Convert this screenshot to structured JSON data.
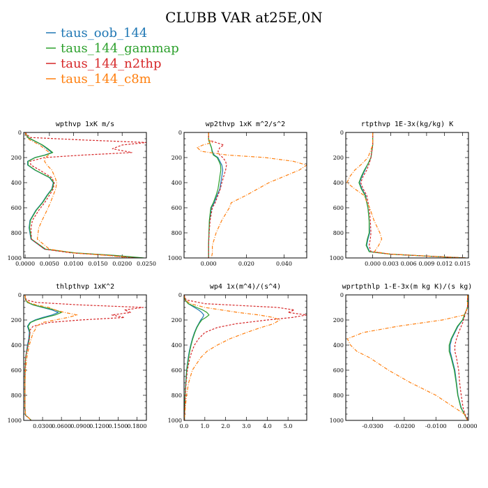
{
  "figure_title": "CLUBB VAR at25E,0N",
  "legend": [
    {
      "label": "taus_oob_144",
      "color": "#1f77b4"
    },
    {
      "label": "taus_144_gammap",
      "color": "#2ca02c"
    },
    {
      "label": "taus_144_n2thp",
      "color": "#d62728"
    },
    {
      "label": "taus_144_c8m",
      "color": "#ff7f0e"
    }
  ],
  "chart_data": [
    {
      "type": "line",
      "title": "wpthvp  1xK m/s",
      "xlim": [
        -0.0003,
        0.025
      ],
      "ylim": [
        1000,
        0
      ],
      "xticks": [
        0.0,
        0.005,
        0.01,
        0.015,
        0.02,
        0.025
      ],
      "xticklabels": [
        "0.0000",
        "0.0050",
        "0.0100",
        "0.0150",
        "0.0200",
        "0.0250"
      ],
      "yticks": [
        0,
        200,
        400,
        600,
        800,
        1000
      ],
      "y": [
        0,
        40,
        60,
        80,
        100,
        130,
        160,
        180,
        200,
        230,
        260,
        300,
        360,
        400,
        450,
        500,
        560,
        620,
        700,
        760,
        850,
        930,
        960,
        980,
        1000
      ],
      "series": [
        {
          "name": "taus_oob_144",
          "values": [
            0,
            0.0005,
            0.0015,
            0.0025,
            0.0035,
            0.0045,
            0.0055,
            0.004,
            0.002,
            0.0005,
            0.0005,
            0.002,
            0.005,
            0.0058,
            0.0055,
            0.0045,
            0.0035,
            0.0022,
            0.001,
            0.0008,
            0.0012,
            0.004,
            0.01,
            0.018,
            0.024
          ]
        },
        {
          "name": "taus_144_gammap",
          "values": [
            0,
            0.0006,
            0.0016,
            0.0026,
            0.0036,
            0.0047,
            0.0057,
            0.0042,
            0.0021,
            0.0006,
            0.0006,
            0.0021,
            0.0051,
            0.0059,
            0.0056,
            0.0046,
            0.0036,
            0.0023,
            0.0011,
            0.0009,
            0.0013,
            0.0042,
            0.0105,
            0.0185,
            0.0245
          ]
        },
        {
          "name": "taus_144_n2thp",
          "values": [
            0,
            0.001,
            0.012,
            0.025,
            0.02,
            0.018,
            0.022,
            0.012,
            0.004,
            0.001,
            0.0012,
            0.003,
            0.0055,
            0.006,
            0.0058,
            0.005,
            0.004,
            0.0028,
            0.0015,
            0.0012,
            0.0013,
            0.004,
            0.0095,
            0.0175,
            0.023
          ]
        },
        {
          "name": "taus_144_c8m",
          "values": [
            0,
            0.0004,
            0.001,
            0.002,
            0.003,
            0.004,
            0.005,
            0.0048,
            0.0042,
            0.004,
            0.0045,
            0.0055,
            0.0062,
            0.0065,
            0.0063,
            0.0058,
            0.0052,
            0.0045,
            0.0035,
            0.0028,
            0.0025,
            0.005,
            0.01,
            0.017,
            0.022
          ]
        }
      ]
    },
    {
      "type": "line",
      "title": "wp2thvp  1xK m^2/s^2",
      "xlim": [
        -0.013,
        0.052
      ],
      "ylim": [
        1000,
        0
      ],
      "xticks": [
        0.0,
        0.02,
        0.04
      ],
      "xticklabels": [
        "0.000",
        "0.020",
        "0.040"
      ],
      "yticks": [
        0,
        200,
        400,
        600,
        800,
        1000
      ],
      "y": [
        0,
        60,
        80,
        100,
        120,
        150,
        180,
        200,
        230,
        260,
        300,
        350,
        400,
        450,
        500,
        560,
        600,
        700,
        800,
        900,
        960,
        1000
      ],
      "series": [
        {
          "name": "taus_oob_144",
          "values": [
            0,
            0,
            0.0005,
            0.001,
            0.0015,
            0.002,
            0.003,
            0.005,
            0.006,
            0.007,
            0.0075,
            0.007,
            0.0065,
            0.006,
            0.0045,
            0.003,
            0.0015,
            0.0005,
            0.0002,
            0,
            0,
            0
          ]
        },
        {
          "name": "taus_144_gammap",
          "values": [
            0,
            0,
            0.0005,
            0.001,
            0.0015,
            0.0018,
            0.0025,
            0.0045,
            0.0055,
            0.0063,
            0.0065,
            0.006,
            0.0055,
            0.005,
            0.004,
            0.0025,
            0.0012,
            0.0004,
            0.0002,
            0,
            0,
            0
          ]
        },
        {
          "name": "taus_144_n2thp",
          "values": [
            0,
            0,
            0.004,
            0.008,
            0.006,
            0.005,
            0.006,
            0.0075,
            0.009,
            0.0095,
            0.009,
            0.008,
            0.007,
            0.0062,
            0.005,
            0.0035,
            0.002,
            0.0008,
            0.0003,
            0,
            0,
            0
          ]
        },
        {
          "name": "taus_144_c8m",
          "values": [
            0,
            0,
            0.002,
            -0.003,
            -0.006,
            -0.004,
            0.01,
            0.03,
            0.045,
            0.052,
            0.048,
            0.04,
            0.032,
            0.026,
            0.02,
            0.012,
            0.011,
            0.007,
            0.004,
            0.002,
            0.002,
            0.0015
          ]
        }
      ]
    },
    {
      "type": "line",
      "title": "rtpthvp  1E-3x(kg/kg) K",
      "xlim": [
        -0.0045,
        0.016
      ],
      "ylim": [
        1000,
        0
      ],
      "xticks": [
        0.0,
        0.003,
        0.006,
        0.009,
        0.012,
        0.015
      ],
      "xticklabels": [
        "0.000",
        "0.003",
        "0.006",
        "0.009",
        "0.012",
        "0.015"
      ],
      "yticks": [
        0,
        200,
        400,
        600,
        800,
        1000
      ],
      "y": [
        0,
        100,
        200,
        250,
        300,
        350,
        400,
        450,
        500,
        600,
        700,
        800,
        850,
        900,
        950,
        970,
        985,
        1000
      ],
      "series": [
        {
          "name": "taus_oob_144",
          "values": [
            0,
            0,
            -0.0003,
            -0.0008,
            -0.0013,
            -0.0018,
            -0.0022,
            -0.0018,
            -0.0012,
            -0.0008,
            -0.0006,
            -0.0005,
            -0.0008,
            -0.001,
            -0.0005,
            0.003,
            0.009,
            0.0155
          ]
        },
        {
          "name": "taus_144_gammap",
          "values": [
            0,
            0,
            -0.0003,
            -0.0008,
            -0.0014,
            -0.0019,
            -0.0023,
            -0.0019,
            -0.0013,
            -0.0008,
            -0.0006,
            -0.0006,
            -0.0009,
            -0.0011,
            -0.0006,
            0.003,
            0.009,
            0.0155
          ]
        },
        {
          "name": "taus_144_n2thp",
          "values": [
            0,
            0,
            -0.0003,
            -0.0006,
            -0.001,
            -0.0016,
            -0.002,
            -0.0016,
            -0.001,
            -0.0006,
            -0.0004,
            -0.0003,
            -0.0004,
            -0.0006,
            -0.0003,
            0.003,
            0.009,
            0.0155
          ]
        },
        {
          "name": "taus_144_c8m",
          "values": [
            0,
            0,
            -0.0008,
            -0.0018,
            -0.003,
            -0.0038,
            -0.0043,
            -0.003,
            -0.0015,
            -0.0005,
            0.0002,
            0.0012,
            0.0015,
            0.001,
            0.0003,
            0.003,
            0.009,
            0.0155
          ]
        }
      ]
    },
    {
      "type": "line",
      "title": "thlpthvp  1xK^2",
      "xlim": [
        0.0,
        0.195
      ],
      "ylim": [
        1000,
        0
      ],
      "xticks": [
        0.03,
        0.06,
        0.09,
        0.12,
        0.15,
        0.18
      ],
      "xticklabels": [
        "0.0300",
        "0.0600",
        "0.0900",
        "0.1200",
        "0.1500",
        "0.1800"
      ],
      "yticks": [
        0,
        200,
        400,
        600,
        800,
        1000
      ],
      "y": [
        0,
        40,
        60,
        80,
        100,
        120,
        140,
        160,
        180,
        200,
        220,
        250,
        280,
        300,
        350,
        400,
        500,
        600,
        700,
        800,
        900,
        960,
        980,
        1000
      ],
      "series": [
        {
          "name": "taus_oob_144",
          "values": [
            0.002,
            0.003,
            0.006,
            0.015,
            0.03,
            0.045,
            0.055,
            0.045,
            0.03,
            0.018,
            0.01,
            0.006,
            0.008,
            0.009,
            0.008,
            0.006,
            0.003,
            0.002,
            0.002,
            0.002,
            0.002,
            0.003,
            0.008,
            0.012
          ]
        },
        {
          "name": "taus_144_gammap",
          "values": [
            0.002,
            0.003,
            0.006,
            0.016,
            0.032,
            0.05,
            0.06,
            0.05,
            0.034,
            0.02,
            0.011,
            0.007,
            0.009,
            0.01,
            0.009,
            0.007,
            0.003,
            0.002,
            0.002,
            0.002,
            0.002,
            0.003,
            0.008,
            0.012
          ]
        },
        {
          "name": "taus_144_n2thp",
          "values": [
            0.002,
            0.004,
            0.02,
            0.09,
            0.19,
            0.16,
            0.17,
            0.14,
            0.16,
            0.09,
            0.04,
            0.015,
            0.01,
            0.01,
            0.009,
            0.007,
            0.003,
            0.002,
            0.002,
            0.002,
            0.002,
            0.003,
            0.008,
            0.012
          ]
        },
        {
          "name": "taus_144_c8m",
          "values": [
            0.002,
            0.003,
            0.008,
            0.02,
            0.04,
            0.05,
            0.065,
            0.085,
            0.07,
            0.05,
            0.03,
            0.02,
            0.018,
            0.015,
            0.012,
            0.009,
            0.005,
            0.003,
            0.002,
            0.002,
            0.002,
            0.003,
            0.008,
            0.012
          ]
        }
      ]
    },
    {
      "type": "line",
      "title": "wp4  1x(m^4)/(s^4)",
      "xlim": [
        0.0,
        5.9
      ],
      "ylim": [
        1000,
        0
      ],
      "xticks": [
        0.0,
        1.0,
        2.0,
        3.0,
        4.0,
        5.0
      ],
      "xticklabels": [
        "0.0",
        "1.0",
        "2.0",
        "3.0",
        "4.0",
        "5.0"
      ],
      "yticks": [
        0,
        200,
        400,
        600,
        800,
        1000
      ],
      "y": [
        0,
        40,
        70,
        100,
        120,
        140,
        160,
        180,
        200,
        230,
        260,
        300,
        350,
        400,
        450,
        500,
        600,
        700,
        800,
        900,
        960,
        1000
      ],
      "series": [
        {
          "name": "taus_oob_144",
          "values": [
            0,
            0.05,
            0.2,
            0.5,
            0.7,
            0.85,
            0.95,
            0.9,
            0.8,
            0.7,
            0.6,
            0.5,
            0.4,
            0.32,
            0.25,
            0.2,
            0.12,
            0.08,
            0.05,
            0.03,
            0.02,
            0.02
          ]
        },
        {
          "name": "taus_144_gammap",
          "values": [
            0,
            0.05,
            0.2,
            0.6,
            0.9,
            1.1,
            1.2,
            1.05,
            0.85,
            0.72,
            0.62,
            0.52,
            0.42,
            0.34,
            0.27,
            0.22,
            0.13,
            0.09,
            0.05,
            0.03,
            0.02,
            0.02
          ]
        },
        {
          "name": "taus_144_n2thp",
          "values": [
            0,
            0.1,
            1.0,
            4.5,
            5.3,
            5.0,
            5.9,
            5.2,
            4.0,
            2.5,
            1.6,
            1.0,
            0.7,
            0.5,
            0.38,
            0.28,
            0.16,
            0.1,
            0.06,
            0.04,
            0.02,
            0.02
          ]
        },
        {
          "name": "taus_144_c8m",
          "values": [
            0,
            0.05,
            0.3,
            1.0,
            1.8,
            2.6,
            3.6,
            4.3,
            4.6,
            4.3,
            3.7,
            3.0,
            2.2,
            1.6,
            1.1,
            0.8,
            0.4,
            0.22,
            0.12,
            0.06,
            0.03,
            0.02
          ]
        }
      ]
    },
    {
      "type": "line",
      "title": "wprtpthlp  1-E-3x(m kg K)/(s kg)",
      "xlim": [
        -0.0385,
        0.0003
      ],
      "ylim": [
        1000,
        0
      ],
      "xticks": [
        -0.03,
        -0.02,
        -0.01,
        0.0
      ],
      "xticklabels": [
        "-0.0300",
        "-0.0200",
        "-0.0100",
        "0.0000"
      ],
      "yticks": [
        0,
        200,
        400,
        600,
        800,
        1000
      ],
      "y": [
        0,
        100,
        160,
        200,
        250,
        300,
        350,
        400,
        450,
        500,
        600,
        700,
        800,
        900,
        950,
        1000
      ],
      "series": [
        {
          "name": "taus_oob_144",
          "values": [
            0,
            0,
            -0.001,
            -0.0015,
            -0.003,
            -0.004,
            -0.005,
            -0.0055,
            -0.0055,
            -0.005,
            -0.004,
            -0.0035,
            -0.003,
            -0.002,
            -0.001,
            0
          ]
        },
        {
          "name": "taus_144_gammap",
          "values": [
            0,
            0,
            -0.001,
            -0.0016,
            -0.0032,
            -0.0042,
            -0.0052,
            -0.0058,
            -0.0058,
            -0.0052,
            -0.0042,
            -0.0036,
            -0.0031,
            -0.0021,
            -0.001,
            0
          ]
        },
        {
          "name": "taus_144_n2thp",
          "values": [
            0,
            0,
            -0.0008,
            -0.0012,
            -0.002,
            -0.0028,
            -0.0035,
            -0.004,
            -0.004,
            -0.0035,
            -0.0028,
            -0.0025,
            -0.002,
            -0.0014,
            -0.0008,
            0
          ]
        },
        {
          "name": "taus_144_c8m",
          "values": [
            0,
            0,
            -0.001,
            -0.008,
            -0.022,
            -0.033,
            -0.038,
            -0.037,
            -0.035,
            -0.031,
            -0.025,
            -0.018,
            -0.01,
            -0.004,
            -0.001,
            0
          ]
        }
      ]
    }
  ]
}
